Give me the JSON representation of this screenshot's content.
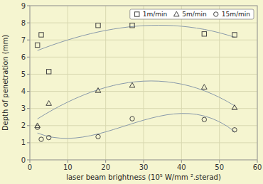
{
  "chart_data": {
    "type": "scatter",
    "xlabel": "laser beam brightness (10⁵ W/mm ².sterad)",
    "ylabel": "Depth of penetration (mm)",
    "xlim": [
      0,
      60
    ],
    "ylim": [
      0,
      9
    ],
    "xticks": [
      0,
      10,
      20,
      30,
      40,
      50,
      60
    ],
    "yticks": [
      0,
      1,
      2,
      3,
      4,
      5,
      6,
      7,
      8,
      9
    ],
    "grid": true,
    "legend": "upper right",
    "series": [
      {
        "name": "1m/min",
        "marker": "square",
        "color": "#444444",
        "x": [
          2,
          3,
          5,
          18,
          27,
          46,
          54
        ],
        "values": [
          6.7,
          7.3,
          5.15,
          7.85,
          7.85,
          7.35,
          7.3
        ]
      },
      {
        "name": "5m/min",
        "marker": "triangle",
        "color": "#444444",
        "x": [
          2,
          5,
          18,
          27,
          46,
          54
        ],
        "values": [
          2.0,
          3.3,
          4.05,
          4.35,
          4.25,
          3.05
        ]
      },
      {
        "name": "15m/min",
        "marker": "circle",
        "color": "#444444",
        "x": [
          2,
          3,
          5,
          18,
          27,
          46,
          54
        ],
        "values": [
          1.9,
          1.2,
          1.3,
          1.35,
          2.4,
          2.35,
          1.75
        ]
      },
      {
        "type": "line",
        "color": "#8899aa",
        "x": [
          2,
          4,
          6,
          8,
          10,
          12,
          14,
          16,
          18,
          20,
          22,
          24,
          26,
          28,
          30,
          32,
          34,
          36,
          38,
          40,
          42,
          44,
          46,
          48,
          50,
          52,
          54
        ],
        "values": [
          6.383,
          6.55,
          6.709,
          6.859,
          7.0,
          7.131,
          7.253,
          7.364,
          7.465,
          7.555,
          7.634,
          7.701,
          7.758,
          7.802,
          7.834,
          7.853,
          7.86,
          7.854,
          7.834,
          7.8,
          7.753,
          7.691,
          7.615,
          7.524,
          7.418,
          7.296,
          7.158
        ]
      },
      {
        "type": "line",
        "color": "#8899aa",
        "x": [
          2,
          4,
          6,
          8,
          10,
          12,
          14,
          16,
          18,
          20,
          22,
          24,
          26,
          28,
          30,
          32,
          34,
          36,
          38,
          40,
          42,
          44,
          46,
          48,
          50,
          52,
          54
        ],
        "values": [
          2.389,
          2.659,
          2.914,
          3.152,
          3.375,
          3.581,
          3.769,
          3.94,
          4.092,
          4.225,
          4.34,
          4.434,
          4.509,
          4.562,
          4.595,
          4.606,
          4.594,
          4.56,
          4.503,
          4.423,
          4.318,
          4.189,
          4.035,
          3.855,
          3.65,
          3.417,
          3.158
        ]
      },
      {
        "type": "line",
        "color": "#8899aa",
        "x": [
          2,
          4,
          6,
          8,
          10,
          12,
          14,
          16,
          18,
          20,
          22,
          24,
          26,
          28,
          30,
          32,
          34,
          36,
          38,
          40,
          42,
          44,
          46,
          48,
          50,
          52,
          54
        ],
        "values": [
          1.564,
          1.417,
          1.319,
          1.267,
          1.254,
          1.278,
          1.332,
          1.413,
          1.515,
          1.634,
          1.765,
          1.904,
          2.045,
          2.184,
          2.316,
          2.436,
          2.54,
          2.624,
          2.681,
          2.708,
          2.7,
          2.653,
          2.56,
          2.418,
          2.222,
          1.968,
          1.65
        ]
      }
    ]
  }
}
